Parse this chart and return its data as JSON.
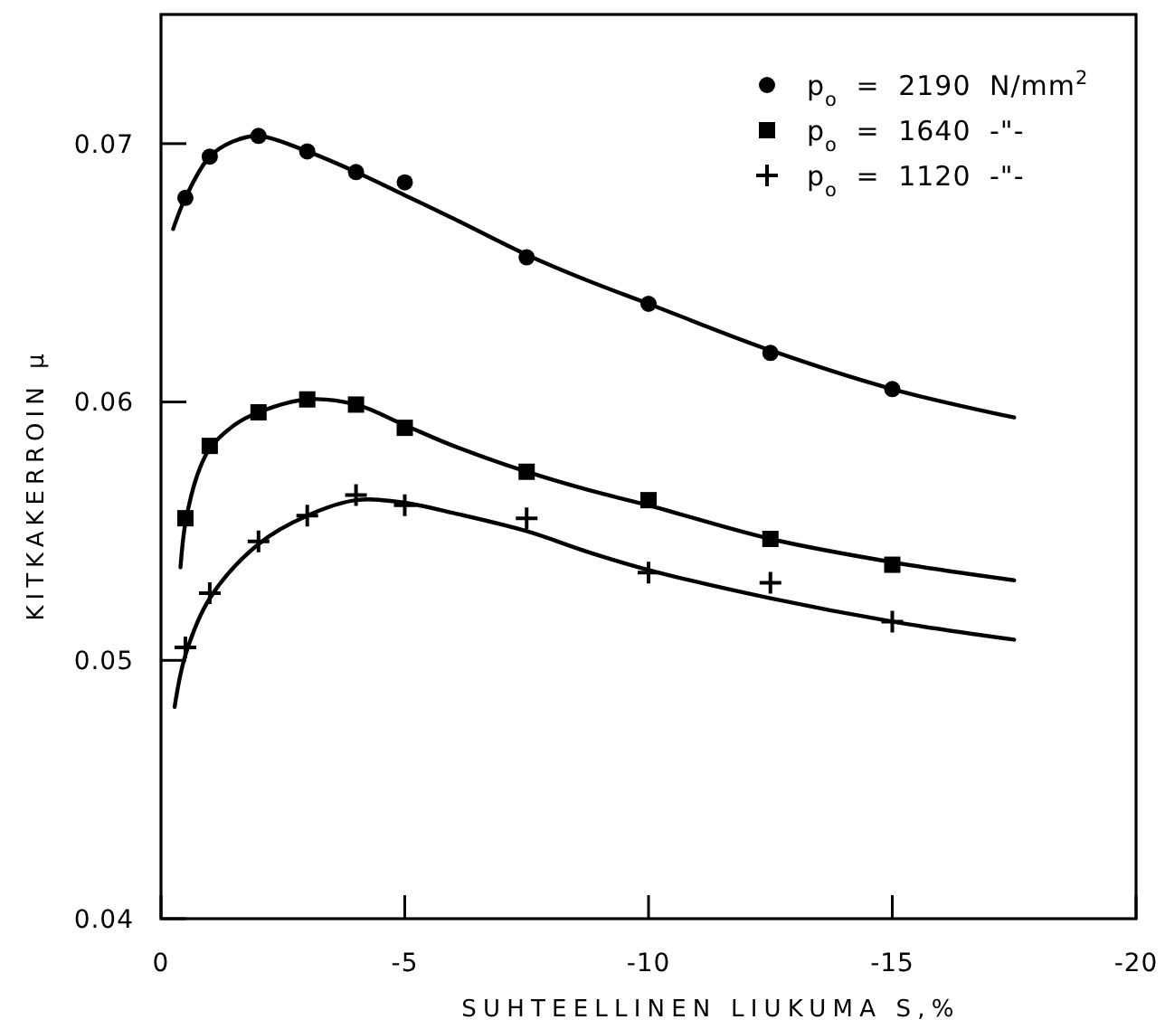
{
  "chart_data": {
    "type": "scatter",
    "xlabel": "SUHTEELLINEN LIUKUMA S,%",
    "ylabel": "KITKAKERROIN μ",
    "xlim": [
      0,
      -20
    ],
    "ylim": [
      0.04,
      0.075
    ],
    "xticks": [
      0,
      -5,
      -10,
      -15,
      -20
    ],
    "yticks": [
      0.04,
      0.05,
      0.06,
      0.07
    ],
    "legend": "top right",
    "series": [
      {
        "name": "p$_{o}$ = 2190 N/mm$^{2}$",
        "color": "#000000",
        "marker": "circle",
        "x": [
          -0.5,
          -1,
          -2,
          -3,
          -4,
          -5,
          -7.5,
          -10,
          -12.5,
          -15
        ],
        "values": [
          0.0679,
          0.0695,
          0.0703,
          0.0697,
          0.0689,
          0.0685,
          0.0656,
          0.0638,
          0.0619,
          0.0605
        ]
      },
      {
        "name": "p$_{o}$ = 1640 -\"-",
        "color": "#000000",
        "marker": "square",
        "x": [
          -0.5,
          -1,
          -2,
          -3,
          -4,
          -5,
          -7.5,
          -10,
          -12.5,
          -15
        ],
        "values": [
          0.0555,
          0.0583,
          0.0596,
          0.0601,
          0.0599,
          0.059,
          0.0573,
          0.0562,
          0.0547,
          0.0537
        ]
      },
      {
        "name": "p$_{o}$ = 1120 -\"-",
        "color": "#000000",
        "marker": "cross",
        "x": [
          -0.5,
          -1,
          -2,
          -3,
          -4,
          -5,
          -7.5,
          -10,
          -12.5,
          -15
        ],
        "values": [
          0.0505,
          0.0526,
          0.0546,
          0.0556,
          0.0564,
          0.056,
          0.0555,
          0.0534,
          0.053,
          0.0515
        ]
      },
      {
        "type": "line",
        "color": "#000000",
        "x": [
          -0.25,
          -0.5,
          -1,
          -1.5,
          -2,
          -3,
          -4,
          -5,
          -6,
          -7.5,
          -8.75,
          -10,
          -12.5,
          -15,
          -17.5
        ],
        "values": [
          0.0667,
          0.0679,
          0.0695,
          0.0701,
          0.0703,
          0.0697,
          0.0689,
          0.068,
          0.0671,
          0.0657,
          0.0647,
          0.0638,
          0.062,
          0.0605,
          0.0594
        ]
      },
      {
        "type": "line",
        "color": "#000000",
        "x": [
          -0.4,
          -0.5,
          -0.75,
          -1,
          -1.5,
          -2,
          -3,
          -4,
          -5,
          -6,
          -7.5,
          -8.75,
          -10,
          -12.5,
          -15,
          -17.5
        ],
        "values": [
          0.0536,
          0.0553,
          0.0572,
          0.0582,
          0.0591,
          0.0596,
          0.0601,
          0.0599,
          0.0591,
          0.0583,
          0.0573,
          0.0566,
          0.056,
          0.0547,
          0.0538,
          0.0531
        ]
      },
      {
        "type": "line",
        "color": "#000000",
        "x": [
          -0.28,
          -0.5,
          -1,
          -2,
          -3,
          -4,
          -5,
          -6,
          -7.5,
          -8.75,
          -10,
          -12.5,
          -15,
          -17.5
        ],
        "values": [
          0.0482,
          0.0502,
          0.0524,
          0.0545,
          0.0556,
          0.0562,
          0.0561,
          0.0557,
          0.055,
          0.0542,
          0.0535,
          0.0524,
          0.0515,
          0.0508
        ]
      }
    ]
  }
}
